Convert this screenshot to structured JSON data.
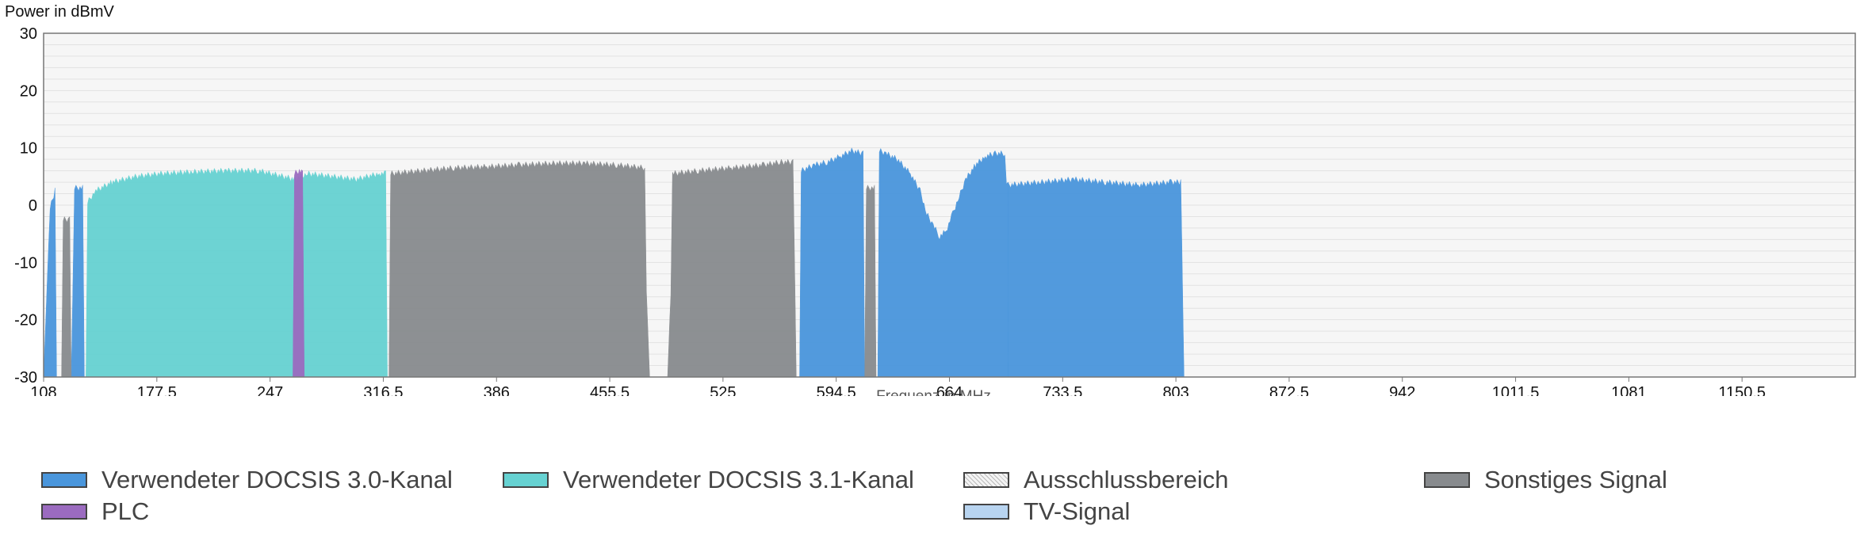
{
  "chart_data": {
    "type": "area",
    "ylabel": "Power in dBmV",
    "xlabel": "Frequenz in MHz",
    "xlim": [
      108,
      1220
    ],
    "ylim": [
      -30,
      30
    ],
    "y_ticks": [
      "30",
      "20",
      "10",
      "0",
      "-10",
      "-20",
      "-30"
    ],
    "x_ticks": [
      "108",
      "177.5",
      "247",
      "316.5",
      "386",
      "455.5",
      "525",
      "594.5",
      "664",
      "733.5",
      "803",
      "872.5",
      "942",
      "1011.5",
      "1081",
      "1150.5"
    ],
    "grid": true,
    "legend_position": "bottom",
    "legend": [
      {
        "label": "Verwendeter DOCSIS 3.0-Kanal",
        "color": "#4a96dc"
      },
      {
        "label": "Verwendeter DOCSIS 3.1-Kanal",
        "color": "#66d2d2"
      },
      {
        "label": "Ausschlussbereich",
        "color": "#eeeeee"
      },
      {
        "label": "Sonstiges Signal",
        "color": "#888b8e"
      },
      {
        "label": "PLC",
        "color": "#9b6bc0"
      },
      {
        "label": "TV-Signal",
        "color": "#b8d4f0"
      }
    ],
    "series": [
      {
        "name": "Verwendeter DOCSIS 3.0-Kanal",
        "color": "#4a96dc",
        "segments": [
          {
            "x": [
              108,
              112,
              115,
              116
            ],
            "y": [
              -30,
              0,
              3,
              -30
            ]
          },
          {
            "x": [
              125,
              127,
              132,
              133
            ],
            "y": [
              -30,
              3.5,
              3.5,
              -30
            ]
          },
          {
            "x": [
              572,
              573,
              581,
              589,
              597,
              604,
              611,
              612
            ],
            "y": [
              -30,
              6.5,
              7.5,
              8,
              9,
              10,
              9.5,
              -30
            ]
          },
          {
            "x": [
              620,
              621,
              625,
              632,
              640,
              646,
              650,
              654,
              658,
              662,
              666,
              670,
              674,
              680,
              686,
              692,
              698,
              699,
              700
            ],
            "y": [
              -30,
              10,
              9.5,
              8.5,
              6,
              3,
              -1,
              -3,
              -5,
              -4,
              -1,
              2,
              5,
              7.5,
              9,
              9.5,
              9.5,
              4,
              4
            ]
          },
          {
            "x": [
              700,
              720,
              740,
              760,
              780,
              800,
              806,
              808
            ],
            "y": [
              4,
              4.5,
              5,
              4.5,
              4,
              4.5,
              4.5,
              -30
            ]
          }
        ]
      },
      {
        "name": "Verwendeter DOCSIS 3.1-Kanal",
        "color": "#66d2d2",
        "segments": [
          {
            "x": [
              134,
              135,
              140,
              150,
              165,
              180,
              200,
              220,
              240,
              255,
              262,
              270,
              285,
              300,
              314,
              318,
              319
            ],
            "y": [
              -30,
              1,
              3,
              4.5,
              5.5,
              6,
              6.3,
              6.5,
              6.5,
              5.5,
              5,
              6,
              5.5,
              5,
              6,
              6,
              -30
            ]
          }
        ]
      },
      {
        "name": "PLC",
        "color": "#9b6bc0",
        "segments": [
          {
            "x": [
              261,
              262,
              265,
              267,
              268
            ],
            "y": [
              -30,
              6,
              6.5,
              6,
              -30
            ]
          }
        ]
      },
      {
        "name": "Sonstiges Signal",
        "color": "#888b8e",
        "segments": [
          {
            "x": [
              119,
              120,
              124,
              125
            ],
            "y": [
              -30,
              -2,
              -2,
              -30
            ]
          },
          {
            "x": [
              320,
              321,
              340,
              360,
              380,
              400,
              420,
              440,
              460,
              477,
              478,
              480
            ],
            "y": [
              -30,
              6,
              6.5,
              7,
              7.2,
              7.5,
              7.8,
              7.8,
              7.5,
              7,
              -15,
              -30
            ]
          },
          {
            "x": [
              491,
              493,
              494,
              510,
              530,
              550,
              560,
              568,
              570
            ],
            "y": [
              -30,
              -15,
              6,
              6.5,
              7,
              7.5,
              8,
              8,
              -30
            ]
          },
          {
            "x": [
              612,
              613,
              618,
              619
            ],
            "y": [
              -30,
              3.5,
              3.5,
              -30
            ]
          }
        ]
      }
    ]
  }
}
